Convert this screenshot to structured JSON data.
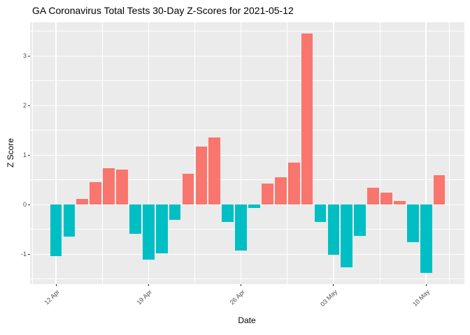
{
  "chart_data": {
    "type": "bar",
    "title": "GA Coronavirus Total Tests 30-Day Z-Scores for 2021-05-12",
    "xlabel": "Date",
    "ylabel": "Z Score",
    "legend": "none",
    "grid": true,
    "dates": [
      "2021-04-12",
      "2021-04-13",
      "2021-04-14",
      "2021-04-15",
      "2021-04-16",
      "2021-04-17",
      "2021-04-18",
      "2021-04-19",
      "2021-04-20",
      "2021-04-21",
      "2021-04-22",
      "2021-04-23",
      "2021-04-24",
      "2021-04-25",
      "2021-04-26",
      "2021-04-27",
      "2021-04-28",
      "2021-04-29",
      "2021-04-30",
      "2021-05-01",
      "2021-05-02",
      "2021-05-03",
      "2021-05-04",
      "2021-05-05",
      "2021-05-06",
      "2021-05-07",
      "2021-05-08",
      "2021-05-09",
      "2021-05-10",
      "2021-05-11"
    ],
    "values": [
      -1.03,
      -0.64,
      0.12,
      0.46,
      0.74,
      0.71,
      -0.58,
      -1.11,
      -0.98,
      -0.3,
      0.63,
      1.18,
      1.35,
      -0.35,
      -0.93,
      -0.06,
      0.43,
      0.55,
      0.85,
      3.46,
      -0.35,
      -1.01,
      -1.26,
      -0.63,
      0.34,
      0.24,
      0.07,
      -0.76,
      -1.38,
      0.6
    ],
    "x_ticks": [
      {
        "label": "12 Apr",
        "day": 0
      },
      {
        "label": "19 Apr",
        "day": 7
      },
      {
        "label": "26 Apr",
        "day": 14
      },
      {
        "label": "03 May",
        "day": 21
      },
      {
        "label": "10 May",
        "day": 28
      }
    ],
    "x_minor_days": [
      -1.75,
      3.5,
      10.5,
      17.5,
      24.5,
      29.75
    ],
    "y_ticks": [
      3,
      2,
      1,
      0,
      -1
    ],
    "y_minor": [
      3.5,
      2.5,
      1.5,
      0.5,
      -0.5,
      -1.5
    ],
    "ylim": [
      -1.6,
      3.68
    ],
    "colors": {
      "positive_bar": "#F8766D",
      "negative_bar": "#00BFC4",
      "panel_bg": "#EBEBEB",
      "grid": "#FFFFFF",
      "tick_mark": "#333333",
      "tick_label": "#4D4D4D",
      "title_text": "#000000",
      "axis_title_text": "#000000",
      "background": "#FFFFFF"
    }
  }
}
